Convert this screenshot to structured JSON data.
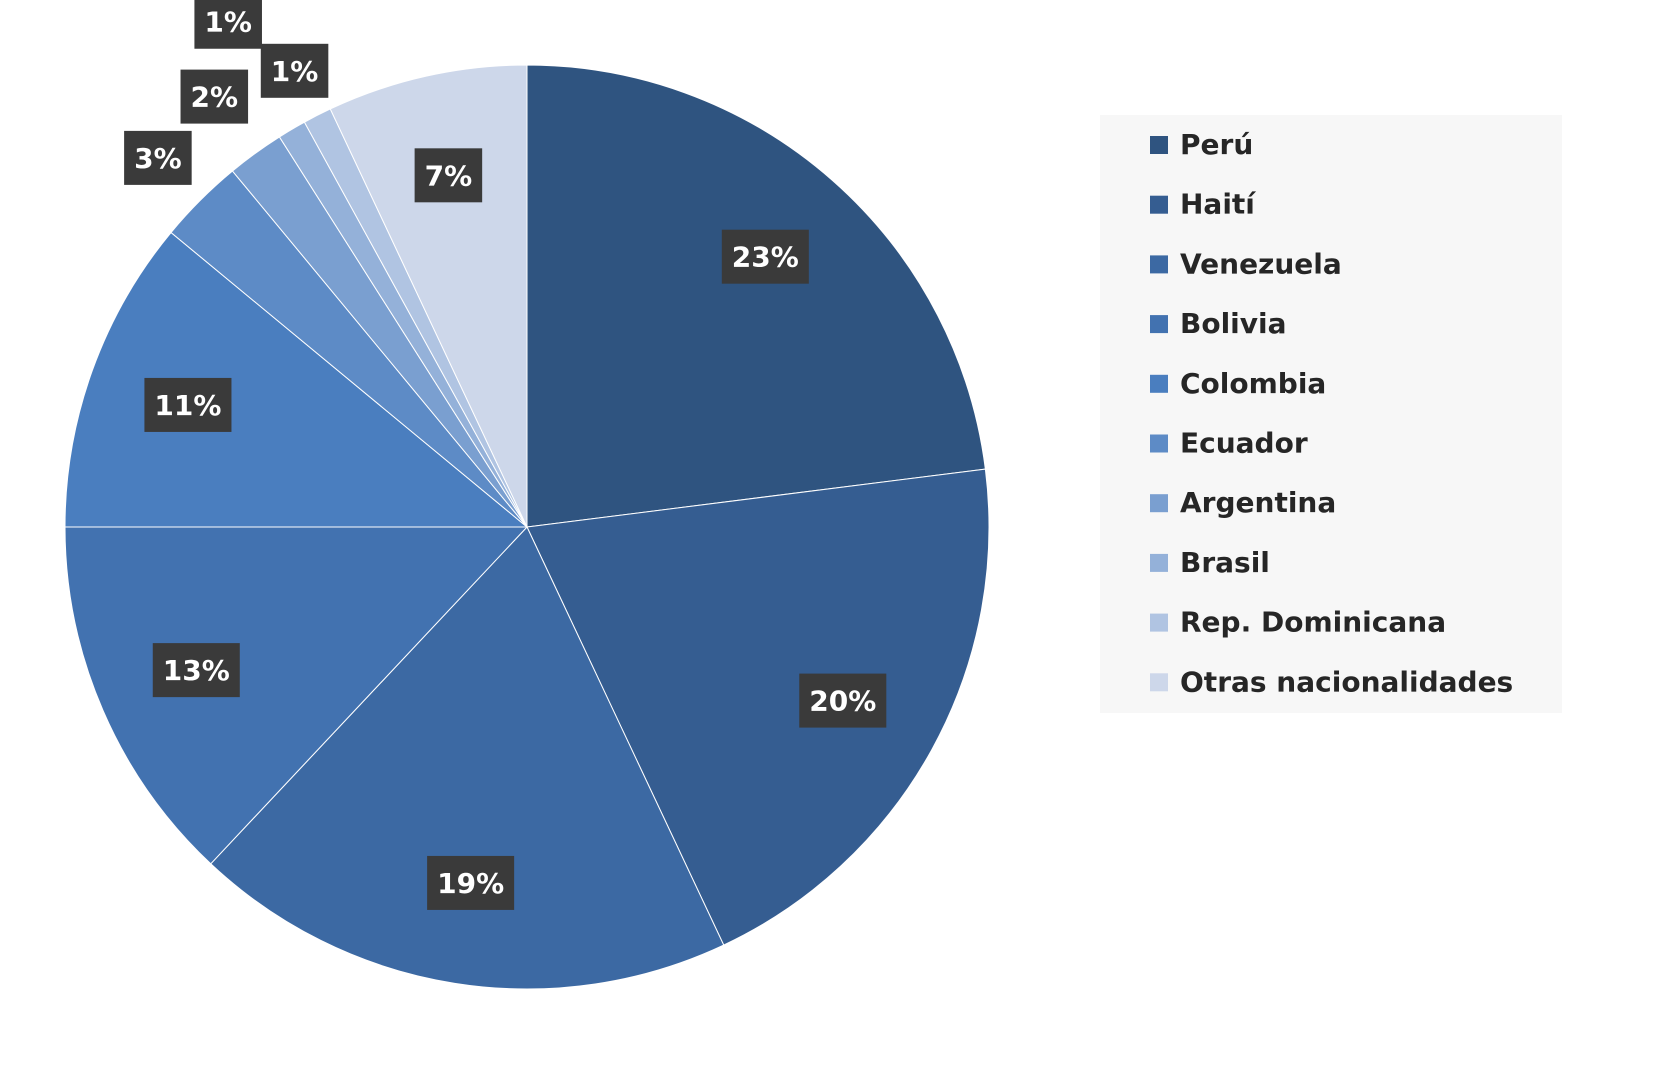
{
  "chart_data": {
    "type": "pie",
    "categories": [
      "Perú",
      "Haití",
      "Venezuela",
      "Bolivia",
      "Colombia",
      "Ecuador",
      "Argentina",
      "Brasil",
      "Rep. Dominicana",
      "Otras nacionalidades"
    ],
    "values": [
      23,
      20,
      19,
      13,
      11,
      3,
      2,
      1,
      1,
      7
    ],
    "value_labels": [
      "23%",
      "20%",
      "19%",
      "13%",
      "11%",
      "3%",
      "2%",
      "1%",
      "1%",
      "7%"
    ],
    "colors": [
      "#2f5480",
      "#355d91",
      "#3c69a3",
      "#4272b0",
      "#4a7ebf",
      "#5d8bc6",
      "#7a9fd0",
      "#94b1d9",
      "#b0c4e2",
      "#cdd7ea"
    ],
    "legend": "right"
  }
}
